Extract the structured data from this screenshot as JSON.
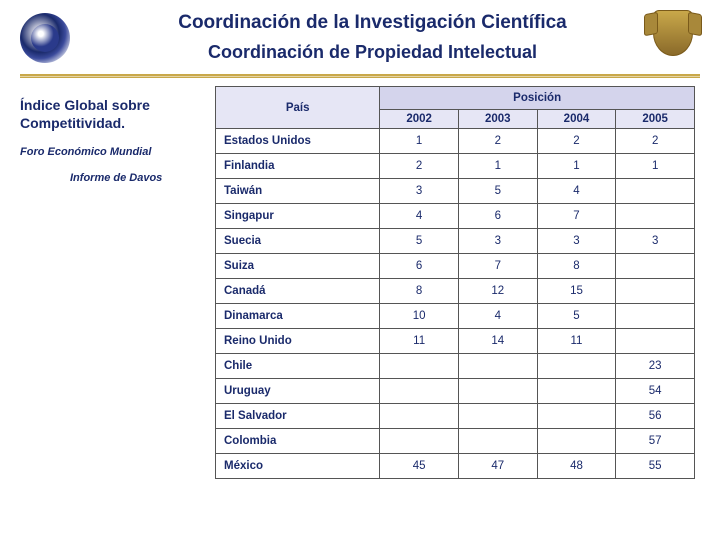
{
  "header": {
    "title1": "Coordinación de la Investigación Científica",
    "title2": "Coordinación de Propiedad Intelectual"
  },
  "sidebar": {
    "index_title": "Índice Global sobre Competitividad.",
    "source1": "Foro Económico Mundial",
    "source2": "Informe de Davos"
  },
  "table": {
    "pais_label": "País",
    "posicion_label": "Posición",
    "years": [
      "2002",
      "2003",
      "2004",
      "2005"
    ],
    "col_widths": {
      "country": 170,
      "year": 77
    },
    "header_bg": "#e6e6f5",
    "posicion_bg": "#d4d4ec",
    "border_color": "#555555",
    "text_color": "#1a2a6b",
    "rows": [
      {
        "country": "Estados Unidos",
        "vals": [
          "1",
          "2",
          "2",
          "2"
        ]
      },
      {
        "country": "Finlandia",
        "vals": [
          "2",
          "1",
          "1",
          "1"
        ]
      },
      {
        "country": "Taiwán",
        "vals": [
          "3",
          "5",
          "4",
          ""
        ]
      },
      {
        "country": "Singapur",
        "vals": [
          "4",
          "6",
          "7",
          ""
        ]
      },
      {
        "country": "Suecia",
        "vals": [
          "5",
          "3",
          "3",
          "3"
        ]
      },
      {
        "country": "Suiza",
        "vals": [
          "6",
          "7",
          "8",
          ""
        ]
      },
      {
        "country": "Canadá",
        "vals": [
          "8",
          "12",
          "15",
          ""
        ]
      },
      {
        "country": "Dinamarca",
        "vals": [
          "10",
          "4",
          "5",
          ""
        ]
      },
      {
        "country": "Reino Unido",
        "vals": [
          "11",
          "14",
          "11",
          ""
        ]
      },
      {
        "country": "Chile",
        "vals": [
          "",
          "",
          "",
          "23"
        ]
      },
      {
        "country": "Uruguay",
        "vals": [
          "",
          "",
          "",
          "54"
        ]
      },
      {
        "country": "El Salvador",
        "vals": [
          "",
          "",
          "",
          "56"
        ]
      },
      {
        "country": "Colombia",
        "vals": [
          "",
          "",
          "",
          "57"
        ]
      },
      {
        "country": "México",
        "vals": [
          "45",
          "47",
          "48",
          "55"
        ]
      }
    ]
  },
  "colors": {
    "primary": "#1a2a6b",
    "gold": "#c9a84a",
    "background": "#ffffff"
  }
}
